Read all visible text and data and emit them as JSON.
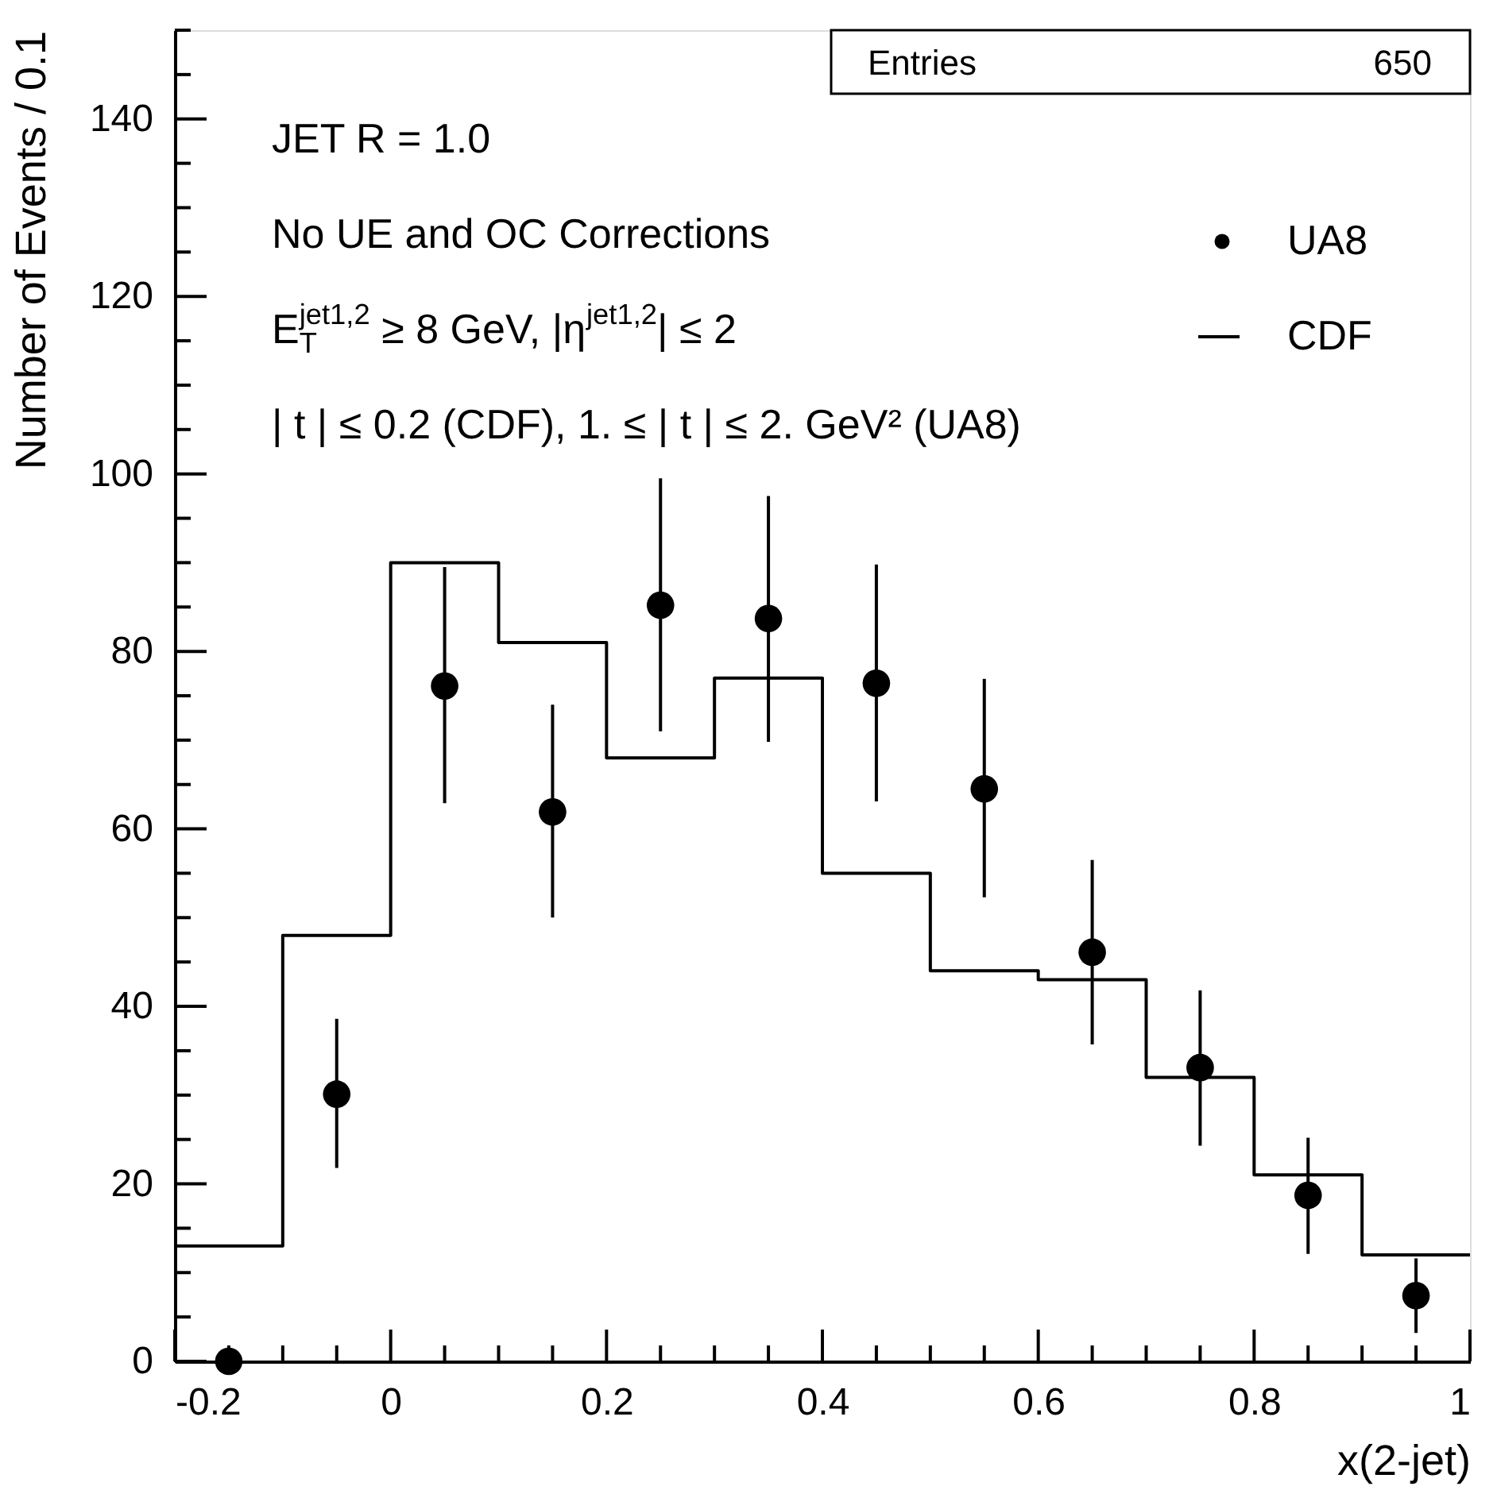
{
  "chart_data": {
    "type": "histogram",
    "xlabel": "x(2-jet)",
    "ylabel": "Number of Events / 0.1",
    "annotations": [
      "Entries",
      "650",
      "JET R = 1.0",
      "No UE and OC Corrections",
      "E$_{T}$$^{jet1,2}$ ≥ 8 GeV, |η$^{jet1,2}$| ≤ 2",
      "| t | ≤ 0.2 (CDF),  1. ≤ | t | ≤ 2. GeV² (UA8)"
    ],
    "series": [
      {
        "name": "UA8",
        "type": "scatter",
        "color": "#000000",
        "marker": "circle",
        "x": [
          -0.15,
          -0.05,
          0.05,
          0.15,
          0.25,
          0.35,
          0.45,
          0.55,
          0.65,
          0.75,
          0.85,
          0.95
        ],
        "values": [
          0,
          30.1,
          76.1,
          61.9,
          85.2,
          83.7,
          76.4,
          64.5,
          46.1,
          33.1,
          18.7,
          7.4
        ],
        "errors": [
          null,
          [
            21.8,
            38.6
          ],
          [
            62.9,
            89.5
          ],
          [
            50.0,
            74.0
          ],
          [
            71.0,
            99.5
          ],
          [
            69.8,
            97.5
          ],
          [
            63.1,
            89.8
          ],
          [
            52.3,
            76.9
          ],
          [
            35.7,
            56.5
          ],
          [
            24.3,
            41.8
          ],
          [
            12.1,
            25.2
          ],
          [
            3.2,
            11.6
          ]
        ]
      },
      {
        "name": "CDF",
        "type": "histogram",
        "color": "#000000",
        "bins": [
          -0.2,
          -0.1,
          0,
          0.1,
          0.2,
          0.3,
          0.4,
          0.5,
          0.6,
          0.7,
          0.8,
          0.9,
          1.0
        ],
        "values": [
          13,
          48,
          90,
          81,
          68,
          77,
          55,
          44,
          43,
          32,
          21,
          12
        ]
      }
    ],
    "xlim": [
      -0.2,
      1.0
    ],
    "ylim": [
      0,
      150
    ],
    "xticks": [
      -0.2,
      {
        "value": -0.15,
        "label": null
      },
      {
        "value": -0.1,
        "label": null
      },
      {
        "value": -0.05,
        "label": null
      },
      0,
      {
        "value": 0.05,
        "label": null
      },
      {
        "value": 0.1,
        "label": null
      },
      {
        "value": 0.15,
        "label": null
      },
      0.2,
      {
        "value": 0.25,
        "label": null
      },
      {
        "value": 0.3,
        "label": null
      },
      {
        "value": 0.35,
        "label": null
      },
      0.4,
      {
        "value": 0.45,
        "label": null
      },
      {
        "value": 0.5,
        "label": null
      },
      {
        "value": 0.55,
        "label": null
      },
      0.6,
      {
        "value": 0.65,
        "label": null
      },
      {
        "value": 0.7,
        "label": null
      },
      {
        "value": 0.75,
        "label": null
      },
      0.8,
      {
        "value": 0.85,
        "label": null
      },
      {
        "value": 0.9,
        "label": null
      },
      {
        "value": 0.95,
        "label": null
      },
      1
    ],
    "yticks": [
      0,
      {
        "value": 5,
        "label": null
      },
      {
        "value": 10,
        "label": null
      },
      {
        "value": 15,
        "label": null
      },
      20,
      {
        "value": 25,
        "label": null
      },
      {
        "value": 30,
        "label": null
      },
      {
        "value": 35,
        "label": null
      },
      40,
      {
        "value": 45,
        "label": null
      },
      {
        "value": 50,
        "label": null
      },
      {
        "value": 55,
        "label": null
      },
      60,
      {
        "value": 65,
        "label": null
      },
      {
        "value": 70,
        "label": null
      },
      {
        "value": 75,
        "label": null
      },
      80,
      {
        "value": 85,
        "label": null
      },
      {
        "value": 90,
        "label": null
      },
      {
        "value": 95,
        "label": null
      },
      100,
      {
        "value": 105,
        "label": null
      },
      {
        "value": 110,
        "label": null
      },
      {
        "value": 115,
        "label": null
      },
      120,
      {
        "value": 125,
        "label": null
      },
      {
        "value": 130,
        "label": null
      },
      {
        "value": 135,
        "label": null
      },
      140,
      {
        "value": 145,
        "label": null
      },
      {
        "value": 150,
        "label": null
      }
    ],
    "grid": false,
    "legend": "top right"
  }
}
